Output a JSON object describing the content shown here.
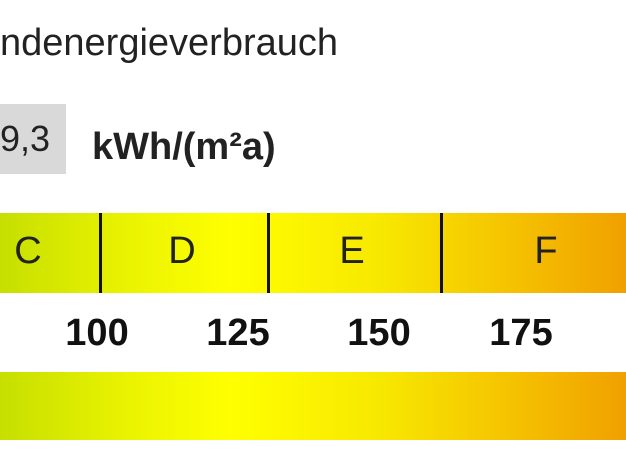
{
  "header": {
    "title": "ndenergieverbrauch"
  },
  "reading": {
    "value": "9,3",
    "unit": "kWh/(m²a)"
  },
  "scale": {
    "classes": [
      "C",
      "D",
      "E",
      "F"
    ],
    "ticks": [
      100,
      125,
      150,
      175
    ]
  }
}
